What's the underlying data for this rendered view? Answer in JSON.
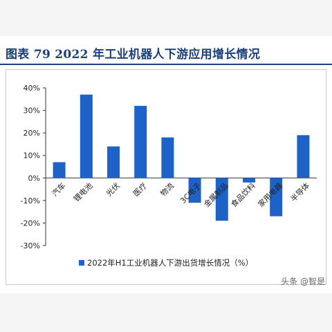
{
  "header": {
    "title": "图表 79   2022 年工业机器人下游应用增长情况"
  },
  "watermark": "头条 @智是",
  "chart_data": {
    "type": "bar",
    "categories": [
      "汽车",
      "锂电池",
      "光伏",
      "医疗",
      "物流",
      "3C电子",
      "金属制品",
      "食品饮料",
      "家用电器",
      "半导体"
    ],
    "series": [
      {
        "name": "2022年H1工业机器人下游出货增长情况（%）",
        "values": [
          7,
          37,
          14,
          32,
          18,
          -11,
          -19,
          -2,
          -17,
          19
        ]
      }
    ],
    "yticks": [
      "40%",
      "30%",
      "20%",
      "10%",
      "0%",
      "-10%",
      "-20%",
      "-30%"
    ],
    "ylim": [
      -30,
      40
    ],
    "grid": false,
    "legend_position": "bottom",
    "colors": {
      "bar": "#1e62c8",
      "axis": "#333333",
      "title": "#1a3f7a"
    }
  }
}
